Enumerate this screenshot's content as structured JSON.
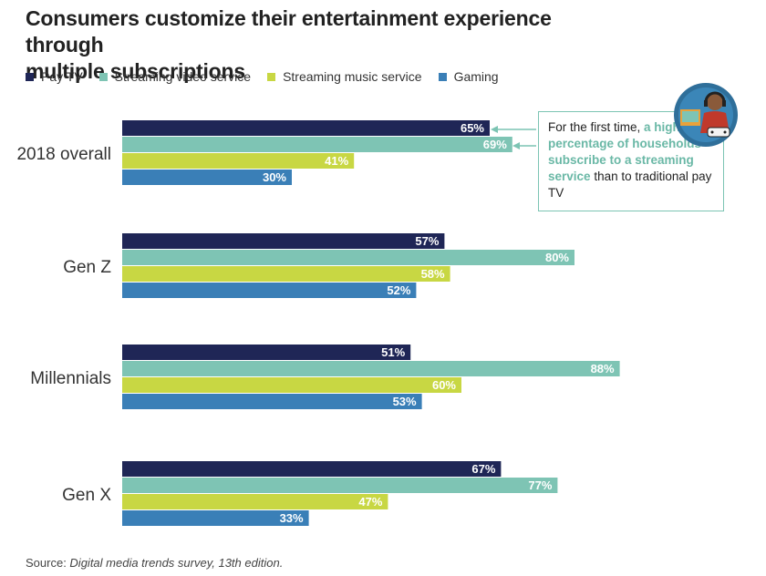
{
  "title_line1": "Consumers customize their entertainment experience through",
  "title_line2": "multiple subscriptions",
  "colors": {
    "pay_tv": "#1f2656",
    "streaming_video": "#7ec4b4",
    "streaming_music": "#c8d743",
    "gaming": "#3a7fb7",
    "callout_border": "#7cc4b3",
    "callout_highlight": "#6ab8a6"
  },
  "callout": {
    "line1": "For the first time,",
    "highlight": "a higher percentage of households subscribe to a streaming service",
    "line_end": "than to traditional pay TV"
  },
  "illustration_icon": "person-with-headphones-and-gaming-controller-icon",
  "source": {
    "prefix": "Source: ",
    "text": "Digital media trends survey, 13th edition."
  },
  "chart_data": {
    "type": "bar",
    "orientation": "horizontal",
    "title": "Consumers customize their entertainment experience through multiple subscriptions",
    "categories": [
      "2018 overall",
      "Gen Z",
      "Millennials",
      "Gen X"
    ],
    "series": [
      {
        "name": "Pay TV",
        "values": [
          65,
          57,
          51,
          67
        ],
        "labels": [
          "65%",
          "57%",
          "51%",
          "67%"
        ]
      },
      {
        "name": "Streaming video service",
        "values": [
          69,
          80,
          88,
          77
        ],
        "labels": [
          "69%",
          "80%",
          "88%",
          "77%"
        ]
      },
      {
        "name": "Streaming music service",
        "values": [
          41,
          58,
          60,
          47
        ],
        "labels": [
          "41%",
          "58%",
          "60%",
          "47%"
        ]
      },
      {
        "name": "Gaming",
        "values": [
          30,
          52,
          53,
          33
        ],
        "labels": [
          "30%",
          "52%",
          "53%",
          "33%"
        ]
      }
    ],
    "xlim": [
      0,
      100
    ],
    "grid": false,
    "legend_placement": "top-left"
  }
}
